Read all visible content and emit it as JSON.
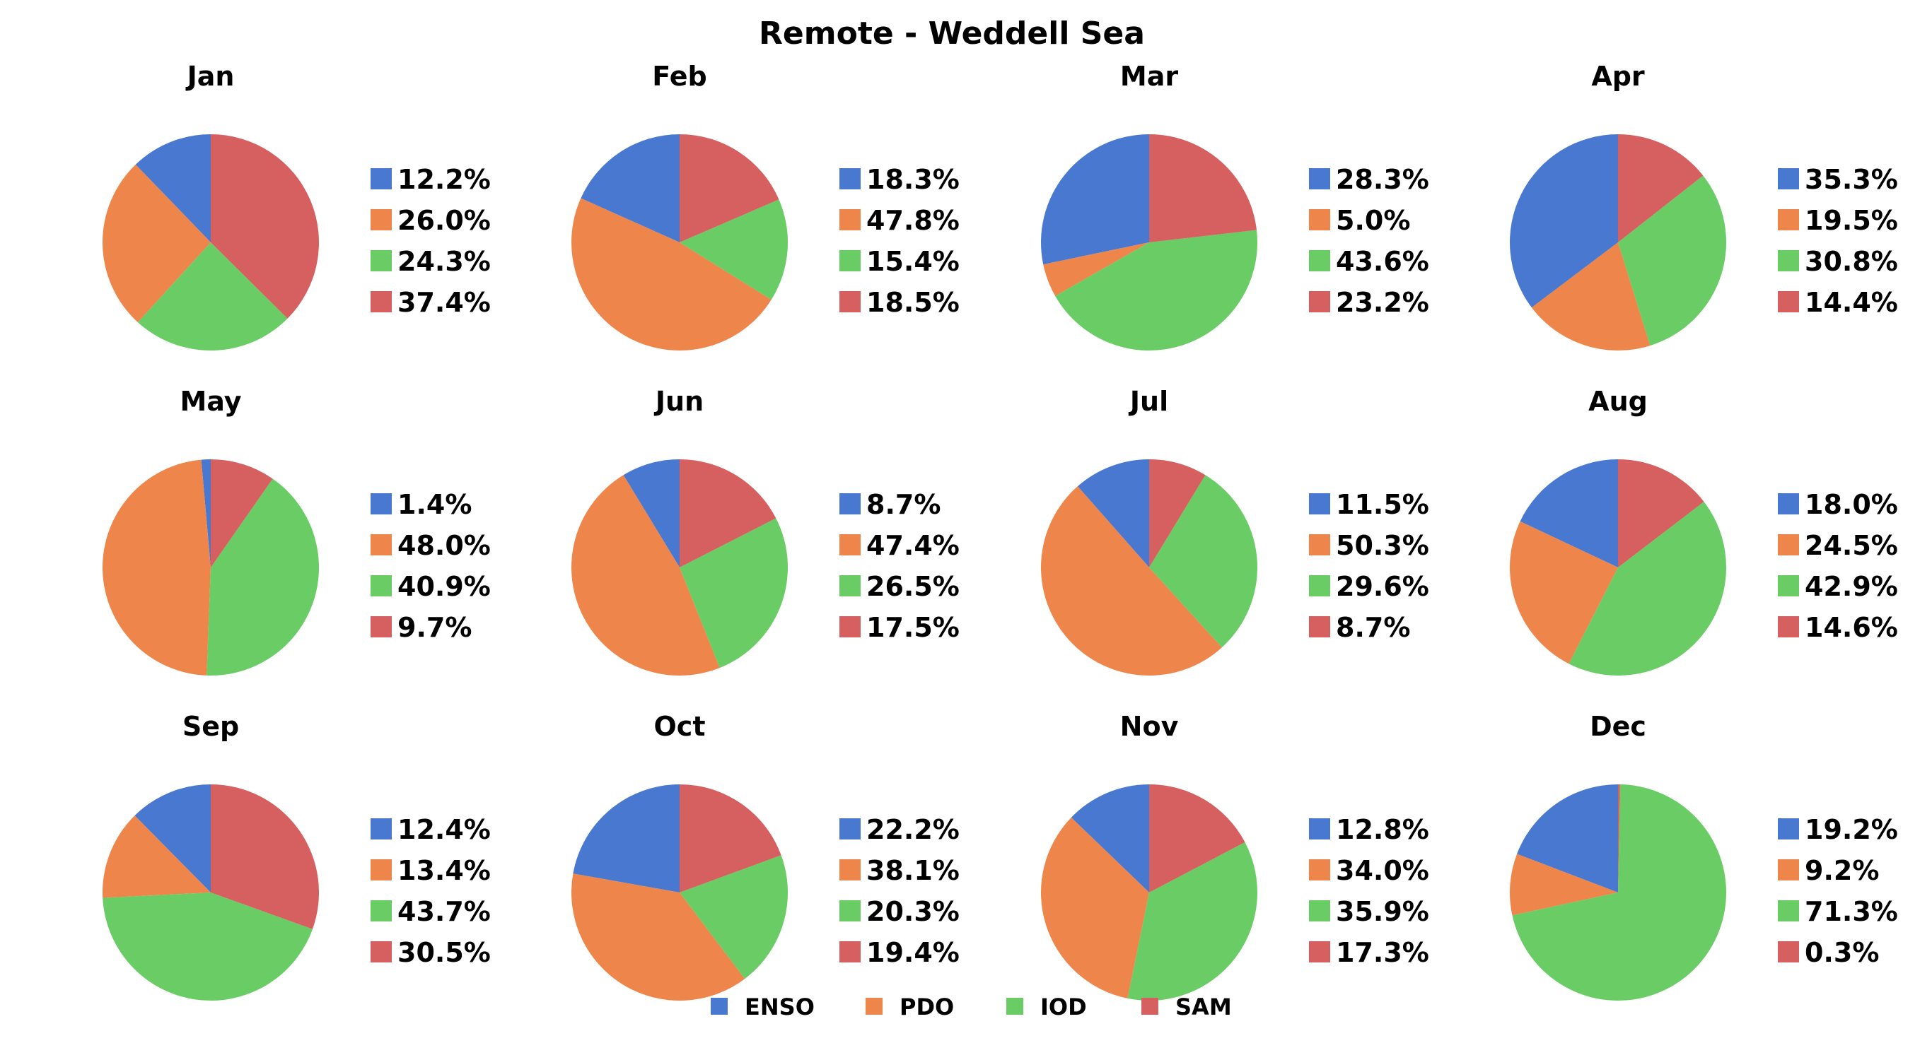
{
  "chart_data": {
    "type": "pie",
    "title": "Remote - Weddell Sea",
    "series_names": [
      "ENSO",
      "PDO",
      "IOD",
      "SAM"
    ],
    "colors": {
      "ENSO": "#4878d0",
      "PDO": "#ee854a",
      "IOD": "#6acc64",
      "SAM": "#d65f5f"
    },
    "legend_position": "bottom-center",
    "months": [
      {
        "name": "Jan",
        "values": [
          12.2,
          26.0,
          24.3,
          37.4
        ],
        "labels": [
          "12.2%",
          "26.0%",
          "24.3%",
          "37.4%"
        ]
      },
      {
        "name": "Feb",
        "values": [
          18.3,
          47.8,
          15.4,
          18.5
        ],
        "labels": [
          "18.3%",
          "47.8%",
          "15.4%",
          "18.5%"
        ]
      },
      {
        "name": "Mar",
        "values": [
          28.3,
          5.0,
          43.6,
          23.2
        ],
        "labels": [
          "28.3%",
          "5.0%",
          "43.6%",
          "23.2%"
        ]
      },
      {
        "name": "Apr",
        "values": [
          35.3,
          19.5,
          30.8,
          14.4
        ],
        "labels": [
          "35.3%",
          "19.5%",
          "30.8%",
          "14.4%"
        ]
      },
      {
        "name": "May",
        "values": [
          1.4,
          48.0,
          40.9,
          9.7
        ],
        "labels": [
          "1.4%",
          "48.0%",
          "40.9%",
          "9.7%"
        ]
      },
      {
        "name": "Jun",
        "values": [
          8.7,
          47.4,
          26.5,
          17.5
        ],
        "labels": [
          "8.7%",
          "47.4%",
          "26.5%",
          "17.5%"
        ]
      },
      {
        "name": "Jul",
        "values": [
          11.5,
          50.3,
          29.6,
          8.7
        ],
        "labels": [
          "11.5%",
          "50.3%",
          "29.6%",
          "8.7%"
        ]
      },
      {
        "name": "Aug",
        "values": [
          18.0,
          24.5,
          42.9,
          14.6
        ],
        "labels": [
          "18.0%",
          "24.5%",
          "42.9%",
          "14.6%"
        ]
      },
      {
        "name": "Sep",
        "values": [
          12.4,
          13.4,
          43.7,
          30.5
        ],
        "labels": [
          "12.4%",
          "13.4%",
          "43.7%",
          "30.5%"
        ]
      },
      {
        "name": "Oct",
        "values": [
          22.2,
          38.1,
          20.3,
          19.4
        ],
        "labels": [
          "22.2%",
          "38.1%",
          "20.3%",
          "19.4%"
        ]
      },
      {
        "name": "Nov",
        "values": [
          12.8,
          34.0,
          35.9,
          17.3
        ],
        "labels": [
          "12.8%",
          "34.0%",
          "35.9%",
          "17.3%"
        ]
      },
      {
        "name": "Dec",
        "values": [
          19.2,
          9.2,
          71.3,
          0.3
        ],
        "labels": [
          "19.2%",
          "9.2%",
          "71.3%",
          "0.3%"
        ]
      }
    ]
  }
}
